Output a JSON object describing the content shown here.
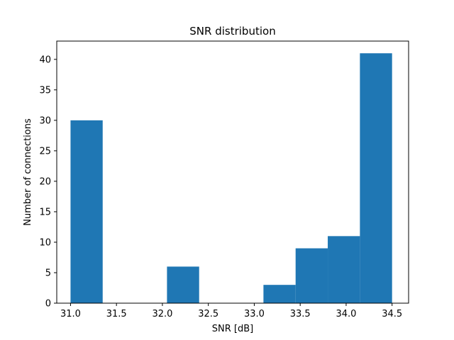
{
  "chart_data": {
    "type": "bar",
    "title": "SNR distribution",
    "xlabel": "SNR [dB]",
    "ylabel": "Number of connections",
    "xlim": [
      30.85,
      34.68
    ],
    "ylim": [
      0,
      43
    ],
    "xticks": [
      "31.0",
      "31.5",
      "32.0",
      "32.5",
      "33.0",
      "33.5",
      "34.0",
      "34.5"
    ],
    "yticks": [
      "0",
      "5",
      "10",
      "15",
      "20",
      "25",
      "30",
      "35",
      "40"
    ],
    "bins": [
      {
        "x0": 31.0,
        "x1": 31.35,
        "count": 30
      },
      {
        "x0": 31.35,
        "x1": 31.7,
        "count": 0
      },
      {
        "x0": 31.7,
        "x1": 32.05,
        "count": 0
      },
      {
        "x0": 32.05,
        "x1": 32.4,
        "count": 6
      },
      {
        "x0": 32.4,
        "x1": 32.75,
        "count": 0
      },
      {
        "x0": 32.75,
        "x1": 33.1,
        "count": 0
      },
      {
        "x0": 33.1,
        "x1": 33.45,
        "count": 3
      },
      {
        "x0": 33.45,
        "x1": 33.8,
        "count": 9
      },
      {
        "x0": 33.8,
        "x1": 34.15,
        "count": 11
      },
      {
        "x0": 34.15,
        "x1": 34.5,
        "count": 41
      }
    ],
    "bar_color": "#1f77b4",
    "grid": false,
    "legend": "none"
  }
}
